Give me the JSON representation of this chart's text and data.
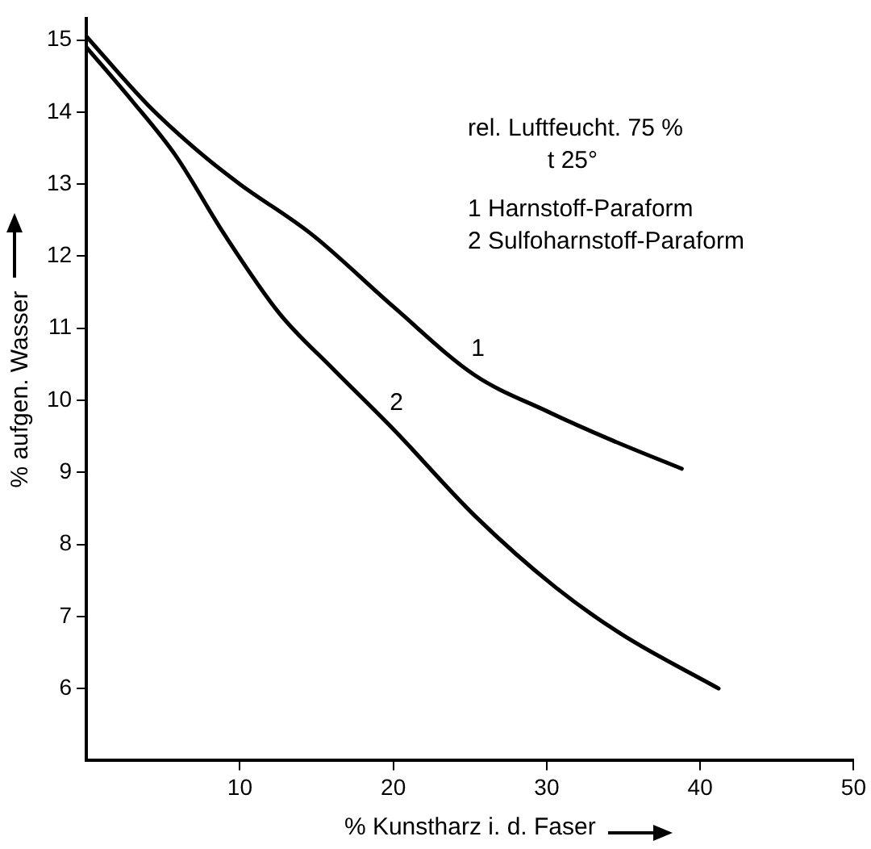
{
  "chart_data": {
    "type": "line",
    "xlabel": "% Kunstharz i. d. Faser",
    "ylabel": "% aufgen. Wasser",
    "xlim": [
      0,
      50
    ],
    "xticks": [
      10,
      20,
      30,
      40,
      50
    ],
    "ylim": [
      5,
      15.3
    ],
    "yticks": [
      6,
      7,
      8,
      9,
      10,
      11,
      12,
      13,
      14,
      15
    ],
    "grid": false,
    "legend": false,
    "marker": "none",
    "line_style": "solid",
    "series": [
      {
        "name": "1",
        "color": "#000000",
        "x": [
          0,
          4,
          7.6,
          10,
          14.7,
          20,
          25.3,
          30,
          34.2,
          38.8
        ],
        "values": [
          15.05,
          14.1,
          13.4,
          13.0,
          12.3,
          11.3,
          10.35,
          9.85,
          9.45,
          9.05
        ]
      },
      {
        "name": "2",
        "color": "#000000",
        "x": [
          0,
          3,
          5.8,
          9,
          12.6,
          16,
          20,
          25.3,
          30.6,
          34.9,
          41.2
        ],
        "values": [
          14.9,
          14.15,
          13.4,
          12.3,
          11.2,
          10.45,
          9.6,
          8.4,
          7.4,
          6.75,
          6.0
        ]
      }
    ],
    "annotations": [
      "rel. Luftfeucht. 75 %",
      "t 25°",
      "1 Harnstoff-Paraform",
      "2 Sulfoharnstoff-Paraform"
    ]
  }
}
